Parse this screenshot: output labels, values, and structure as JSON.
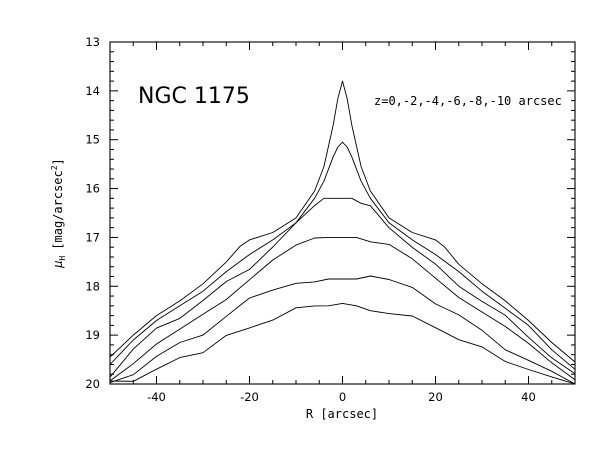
{
  "chart_data": {
    "type": "line",
    "title": "NGC 1175",
    "annotation": "z=0,-2,-4,-6,-8,-10 arcsec",
    "xlabel": "R [arcsec]",
    "ylabel": {
      "main": "μ",
      "sub": "H",
      "unit_pre": "[mag/arcsec",
      "unit_sup": "2",
      "unit_post": "]"
    },
    "xlim": [
      -50,
      50
    ],
    "ylim": [
      13,
      20
    ],
    "y_inverted": true,
    "x_ticks": [
      "-40",
      "-20",
      "0",
      "20",
      "40"
    ],
    "y_ticks": [
      "13",
      "14",
      "15",
      "16",
      "17",
      "18",
      "19",
      "20"
    ],
    "series": [
      {
        "x": [
          -50,
          -45,
          -40,
          -35,
          -30,
          -25,
          -22,
          -20,
          -15,
          -10,
          -6,
          -4,
          -2,
          -1,
          0,
          1,
          2,
          4,
          6,
          10,
          15,
          20,
          22,
          25,
          30,
          35,
          40,
          45,
          50
        ],
        "y": [
          19.45,
          19.0,
          18.6,
          18.3,
          17.95,
          17.5,
          17.18,
          17.05,
          16.9,
          16.6,
          16.05,
          15.55,
          14.7,
          14.15,
          13.8,
          14.15,
          14.7,
          15.55,
          16.05,
          16.6,
          16.9,
          17.05,
          17.2,
          17.55,
          17.95,
          18.3,
          18.7,
          19.15,
          19.55
        ]
      },
      {
        "x": [
          -50,
          -45,
          -40,
          -35,
          -30,
          -25,
          -20,
          -15,
          -10,
          -6,
          -4,
          -2,
          -1,
          0,
          1,
          2,
          4,
          6,
          10,
          15,
          20,
          25,
          30,
          35,
          40,
          45,
          50
        ],
        "y": [
          19.6,
          19.1,
          18.7,
          18.4,
          18.1,
          17.7,
          17.35,
          17.05,
          16.7,
          16.2,
          15.85,
          15.35,
          15.15,
          15.05,
          15.15,
          15.35,
          15.85,
          16.2,
          16.7,
          17.05,
          17.35,
          17.7,
          18.1,
          18.45,
          18.8,
          19.3,
          19.7
        ]
      },
      {
        "x": [
          -50,
          -45,
          -40,
          -35,
          -30,
          -25,
          -20,
          -15,
          -10,
          -6,
          -4,
          -2,
          0,
          2,
          4,
          6,
          10,
          15,
          20,
          25,
          30,
          35,
          40,
          45,
          50
        ],
        "y": [
          19.8,
          19.3,
          18.9,
          18.6,
          18.3,
          17.95,
          17.6,
          17.2,
          16.75,
          16.35,
          16.25,
          16.2,
          16.2,
          16.2,
          16.25,
          16.35,
          16.75,
          17.2,
          17.6,
          17.95,
          18.3,
          18.65,
          19.0,
          19.45,
          19.85
        ]
      },
      {
        "x": [
          -50,
          -45,
          -40,
          -35,
          -30,
          -25,
          -20,
          -15,
          -10,
          -6,
          -3,
          0,
          3,
          6,
          10,
          15,
          20,
          25,
          30,
          35,
          40,
          45,
          50
        ],
        "y": [
          19.9,
          19.55,
          19.15,
          18.85,
          18.55,
          18.25,
          17.85,
          17.45,
          17.15,
          17.05,
          17.0,
          17.0,
          17.0,
          17.05,
          17.15,
          17.45,
          17.85,
          18.25,
          18.55,
          18.85,
          19.2,
          19.6,
          19.95
        ]
      },
      {
        "x": [
          -50,
          -45,
          -40,
          -35,
          -30,
          -25,
          -20,
          -15,
          -10,
          -6,
          -3,
          0,
          3,
          6,
          10,
          15,
          20,
          25,
          30,
          35,
          40,
          45,
          50
        ],
        "y": [
          20.0,
          19.75,
          19.45,
          19.2,
          18.95,
          18.6,
          18.3,
          18.05,
          17.9,
          17.85,
          17.85,
          17.85,
          17.85,
          17.85,
          17.9,
          18.05,
          18.3,
          18.6,
          18.95,
          19.25,
          19.5,
          19.8,
          20.0
        ]
      },
      {
        "x": [
          -50,
          -45,
          -40,
          -35,
          -30,
          -25,
          -20,
          -15,
          -10,
          -6,
          -3,
          0,
          3,
          6,
          10,
          15,
          20,
          25,
          30,
          35,
          40,
          45,
          50
        ],
        "y": [
          20.0,
          19.9,
          19.7,
          19.5,
          19.3,
          19.05,
          18.85,
          18.65,
          18.5,
          18.45,
          18.4,
          18.35,
          18.4,
          18.45,
          18.5,
          18.65,
          18.85,
          19.05,
          19.3,
          19.5,
          19.7,
          19.9,
          20.0
        ]
      }
    ]
  }
}
